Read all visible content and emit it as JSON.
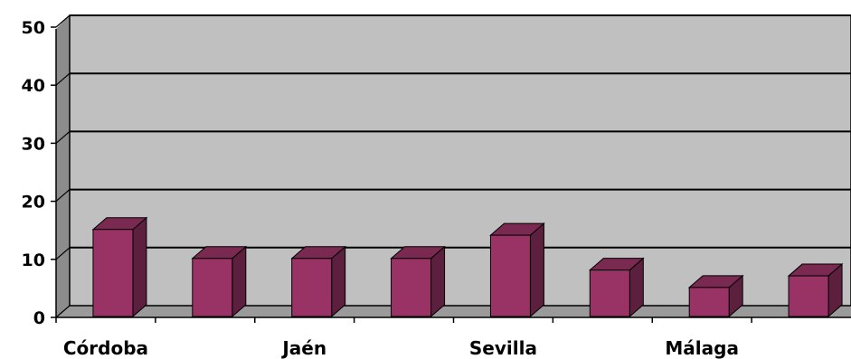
{
  "chart_data": {
    "type": "bar",
    "categories": [
      "Córdoba",
      "",
      "Jaén",
      "",
      "Sevilla",
      "",
      "Málaga",
      ""
    ],
    "values": [
      15,
      10,
      10,
      10,
      14,
      8,
      5,
      7
    ],
    "ylim": [
      0,
      50
    ],
    "yticks": [
      "0",
      "10",
      "20",
      "30",
      "40",
      "50"
    ],
    "grid": true,
    "bar_style": "3d",
    "colors": {
      "bar_front": "#993366",
      "bar_side": "#5c1f3e",
      "bar_top": "#7a2950",
      "plot_back": "#c0c0c0",
      "plot_wall": "#8c8c8c",
      "floor": "#9a9a9a"
    }
  }
}
